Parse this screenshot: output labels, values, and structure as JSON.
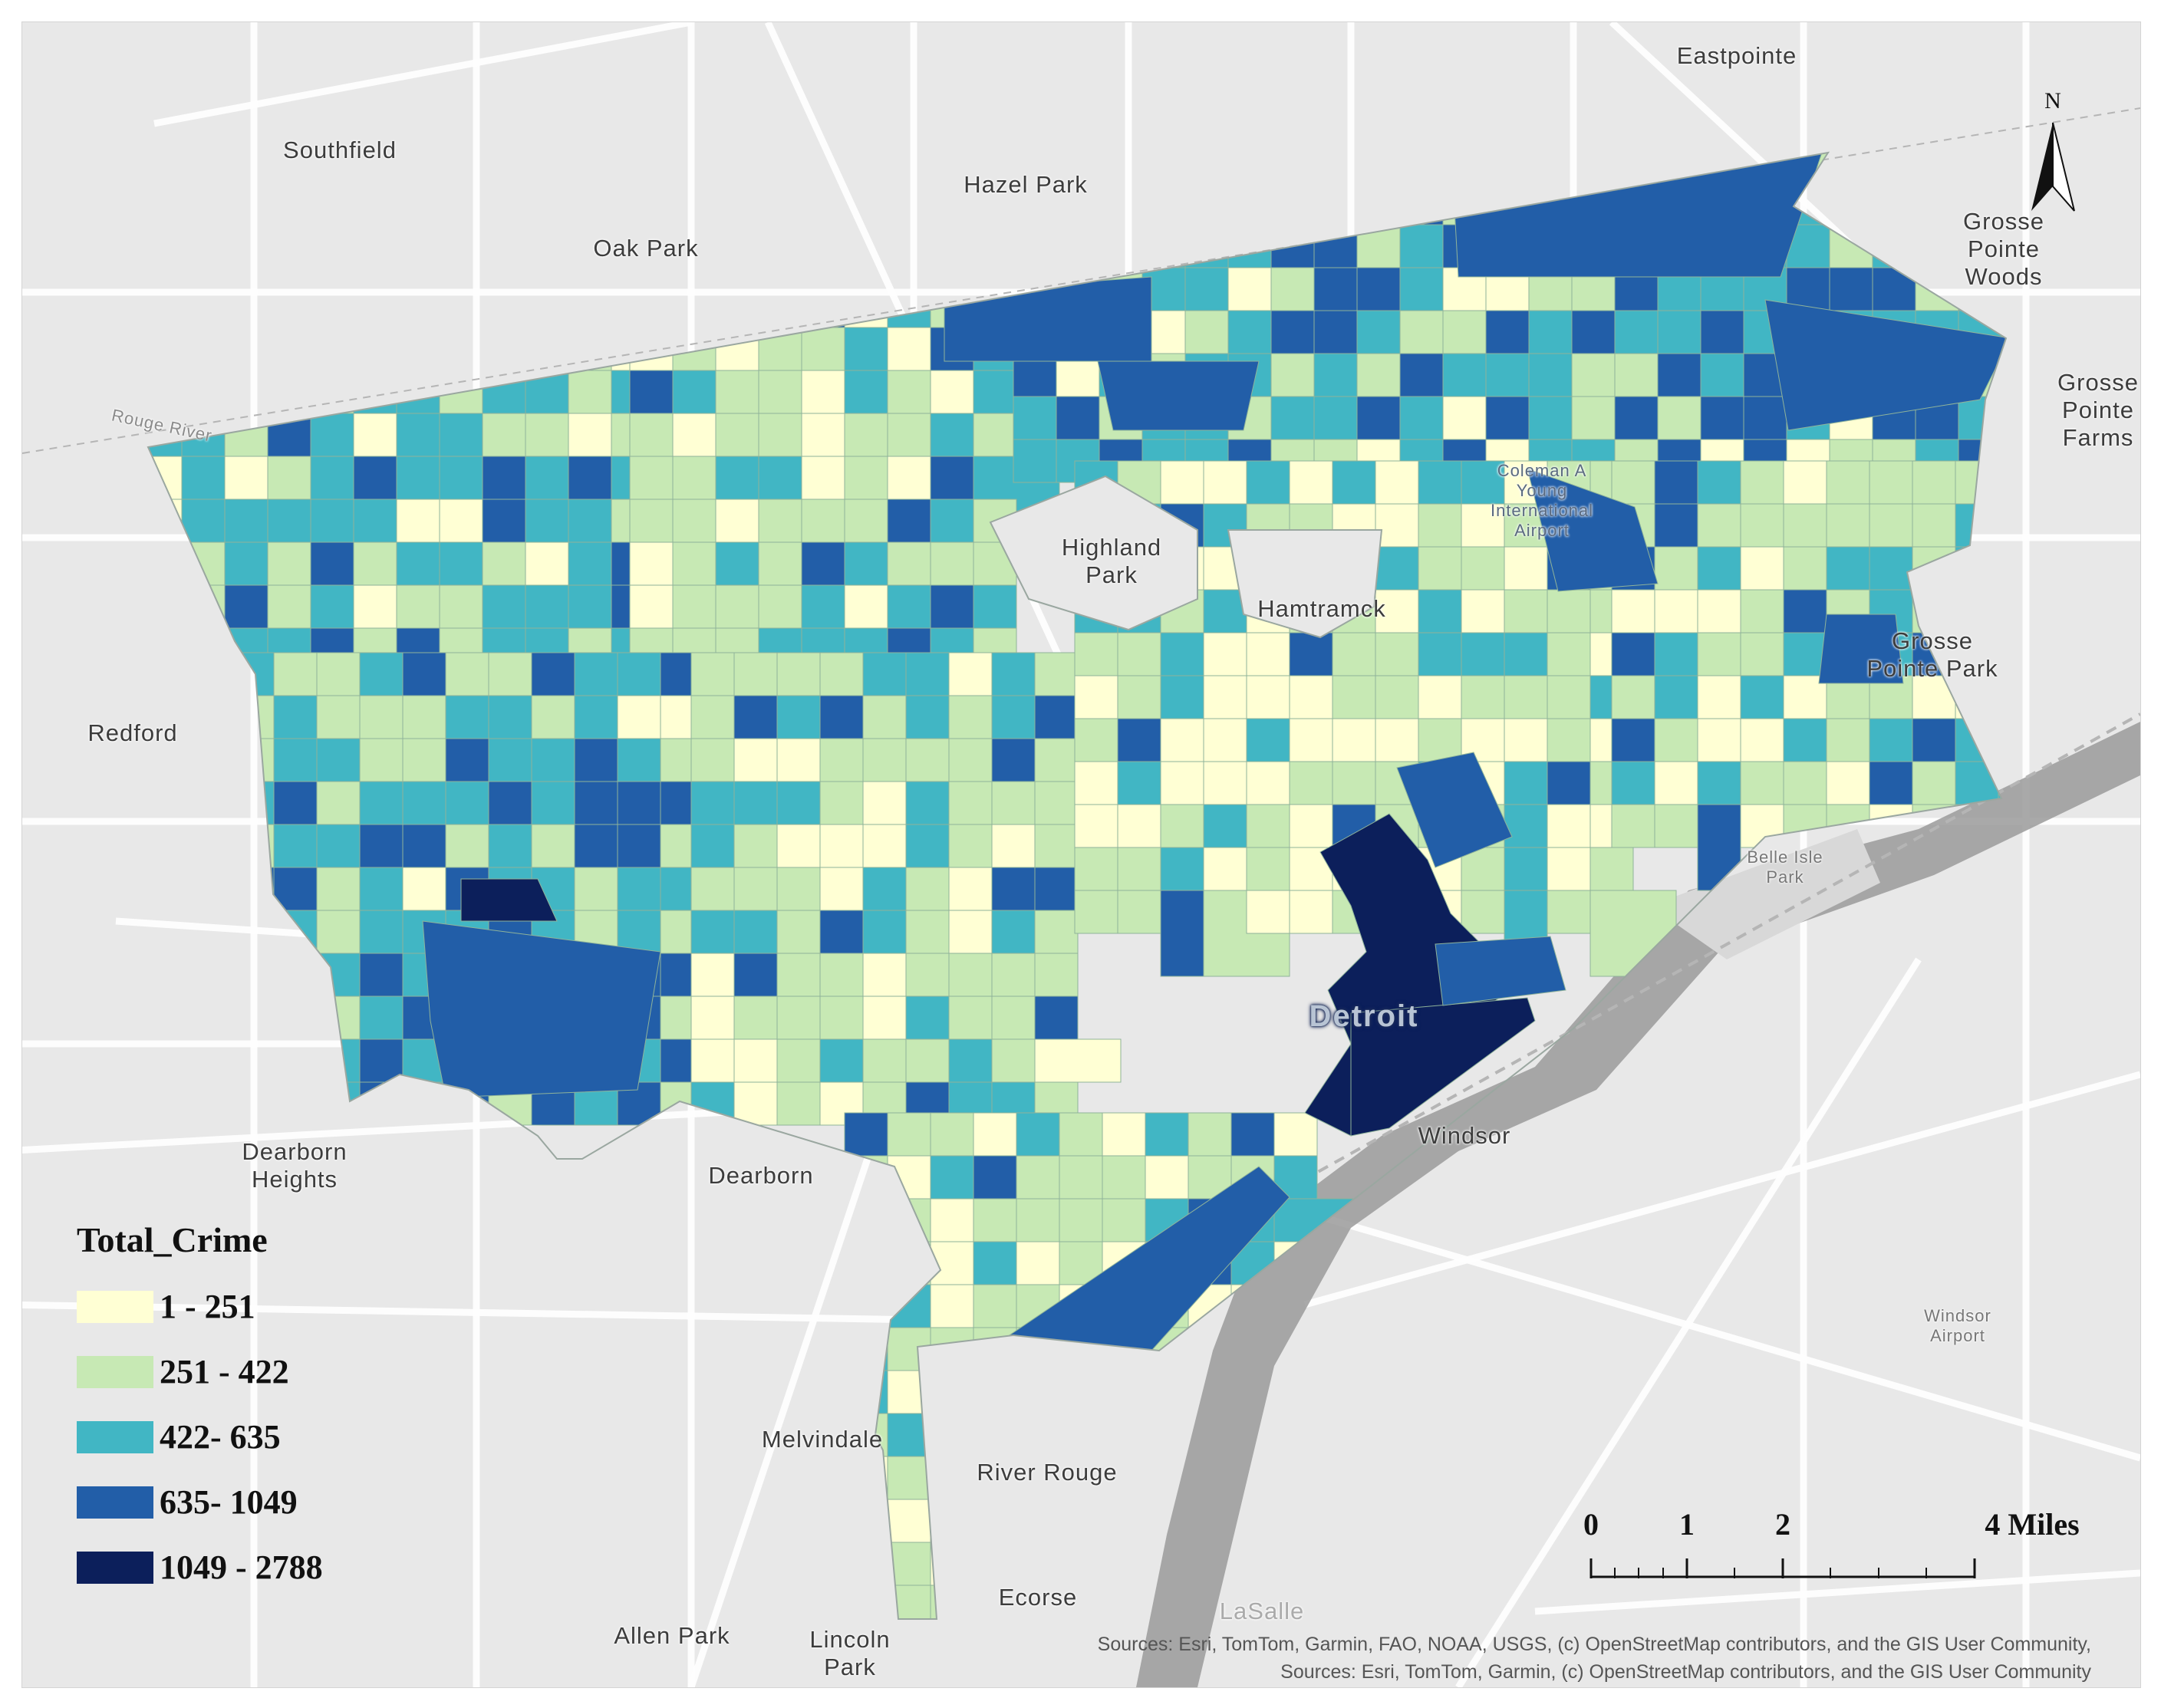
{
  "legend": {
    "title": "Total_Crime",
    "classes": [
      {
        "label": "1 - 251",
        "color": "#ffffd4"
      },
      {
        "label": "251 - 422",
        "color": "#c7e9b4"
      },
      {
        "label": "422- 635",
        "color": "#41b6c4"
      },
      {
        "label": "635- 1049",
        "color": "#225ea8"
      },
      {
        "label": "1049 - 2788",
        "color": "#0c1f5b"
      }
    ]
  },
  "north_arrow": {
    "label": "N"
  },
  "scale_bar": {
    "labels": [
      "0",
      "1",
      "2",
      "4 Miles"
    ],
    "max_miles": 4
  },
  "places": {
    "eastpointe": "Eastpointe",
    "southfield": "Southfield",
    "hazel_park": "Hazel Park",
    "oak_park": "Oak Park",
    "grosse_pointe_woods": "Grosse\nPointe\nWoods",
    "grosse_pointe_farms": "Grosse\nPointe\nFarms",
    "rouge_river": "Rouge River",
    "coleman_airport": "Coleman A\nYoung\nInternational\nAirport",
    "highland_park": "Highland\nPark",
    "hamtramck": "Hamtramck",
    "grosse_pointe_park": "Grosse\nPointe Park",
    "redford": "Redford",
    "belle_isle": "Belle Isle\nPark",
    "detroit": "Detroit",
    "windsor": "Windsor",
    "dearborn_heights": "Dearborn\nHeights",
    "dearborn": "Dearborn",
    "windsor_airport": "Windsor\nAirport",
    "melvindale": "Melvindale",
    "river_rouge": "River Rouge",
    "ecorse": "Ecorse",
    "allen_park": "Allen Park",
    "lincoln_park": "Lincoln\nPark",
    "lasalle": "LaSalle"
  },
  "attribution": "Sources:  Esri, TomTom, Garmin, FAO, NOAA, USGS, (c) OpenStreetMap contributors, and the GIS User Community, Sources:  Esri, TomTom, Garmin, (c) OpenStreetMap contributors, and the GIS User Community",
  "colors": {
    "basemap": "#e8e8e8",
    "road": "#ffffff",
    "water": "#9a9a9a",
    "park": "#d8d8d8"
  }
}
